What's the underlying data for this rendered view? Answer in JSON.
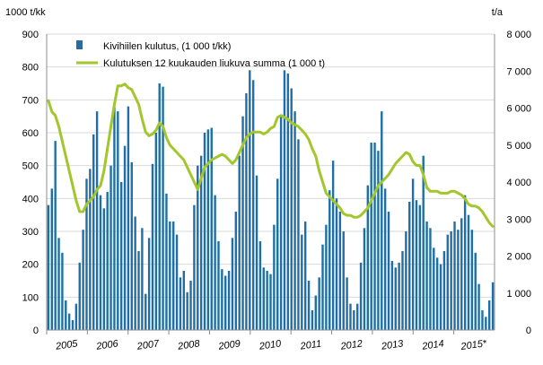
{
  "chart_data": {
    "type": "bar+line",
    "left_unit": "1000 t/kk",
    "right_unit": "t/a",
    "left_ylim": [
      0,
      900
    ],
    "left_ticks": [
      "0",
      "100",
      "200",
      "300",
      "400",
      "500",
      "600",
      "700",
      "800",
      "900"
    ],
    "right_ylim": [
      0,
      8000
    ],
    "right_ticks": [
      "0",
      "1 000",
      "2 000",
      "3 000",
      "4 000",
      "5 000",
      "6 000",
      "7 000",
      "8 000"
    ],
    "x_labels": [
      "2005",
      "2006",
      "2007",
      "2008",
      "2009",
      "2010",
      "2011",
      "2012",
      "2013",
      "2014",
      "2015*"
    ],
    "grid": "horizontal",
    "legend_position": "top-left",
    "series": [
      {
        "name": "Kivihiilen kulutus, (1 000 t/kk)",
        "type": "bar",
        "axis": "left",
        "color": "#1f6fa6",
        "values": [
          380,
          430,
          575,
          280,
          235,
          90,
          50,
          30,
          80,
          205,
          305,
          460,
          490,
          595,
          665,
          410,
          370,
          420,
          500,
          680,
          665,
          450,
          560,
          680,
          510,
          345,
          240,
          310,
          110,
          280,
          505,
          600,
          750,
          740,
          415,
          330,
          330,
          290,
          160,
          180,
          115,
          150,
          380,
          500,
          530,
          600,
          610,
          615,
          410,
          270,
          185,
          165,
          180,
          280,
          360,
          530,
          650,
          720,
          790,
          760,
          470,
          270,
          190,
          180,
          170,
          320,
          460,
          650,
          790,
          780,
          735,
          665,
          580,
          290,
          330,
          150,
          60,
          105,
          160,
          260,
          320,
          425,
          515,
          400,
          360,
          300,
          160,
          80,
          60,
          80,
          205,
          310,
          440,
          570,
          570,
          545,
          665,
          430,
          360,
          210,
          190,
          205,
          240,
          300,
          390,
          460,
          395,
          380,
          530,
          330,
          310,
          250,
          220,
          200,
          240,
          290,
          300,
          330,
          305,
          340,
          410,
          350,
          305,
          235,
          140,
          60,
          40,
          90,
          145
        ]
      },
      {
        "name": "Kulutuksen 12 kuukauden liukuva summa (1 000 t)",
        "type": "line",
        "axis": "right",
        "color": "#a2c62c",
        "values": [
          6200,
          5900,
          5800,
          5500,
          5100,
          4700,
          4300,
          3900,
          3500,
          3200,
          3200,
          3400,
          3500,
          3600,
          3800,
          3900,
          4300,
          4900,
          5500,
          6100,
          6600,
          6600,
          6650,
          6550,
          6500,
          6300,
          6100,
          5700,
          5350,
          5250,
          5300,
          5400,
          5600,
          5500,
          5200,
          5000,
          4900,
          4800,
          4700,
          4600,
          4400,
          4200,
          4000,
          3800,
          4100,
          4400,
          4500,
          4600,
          4650,
          4700,
          4750,
          4700,
          4600,
          4500,
          4600,
          4800,
          5000,
          5200,
          5300,
          5350,
          5350,
          5350,
          5300,
          5350,
          5450,
          5500,
          5750,
          5800,
          5750,
          5700,
          5600,
          5550,
          5500,
          5400,
          5300,
          5150,
          4900,
          4700,
          4300,
          4000,
          3700,
          3600,
          3500,
          3400,
          3300,
          3150,
          3100,
          3100,
          3050,
          3050,
          3100,
          3200,
          3300,
          3500,
          3700,
          3900,
          4000,
          4100,
          4200,
          4350,
          4500,
          4600,
          4700,
          4800,
          4750,
          4550,
          4450,
          4450,
          4200,
          3850,
          3750,
          3750,
          3750,
          3700,
          3700,
          3700,
          3750,
          3750,
          3700,
          3650,
          3550,
          3400,
          3350,
          3350,
          3300,
          3200,
          3050,
          2900,
          2800
        ]
      }
    ]
  }
}
